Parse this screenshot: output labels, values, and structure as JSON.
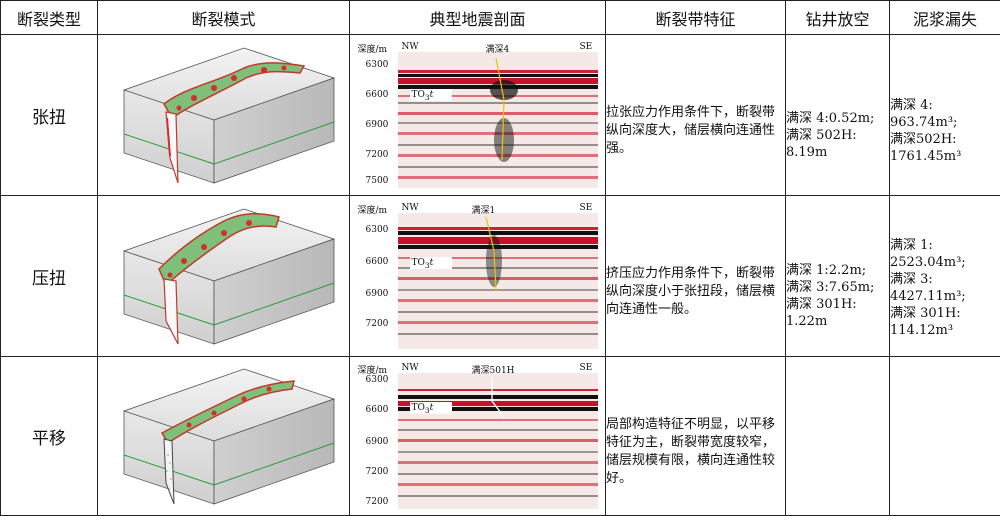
{
  "headers": [
    "断裂类型",
    "断裂模式",
    "典型地震剖面",
    "断裂带特征",
    "钻井放空",
    "泥浆漏失"
  ],
  "rows": [
    {
      "type": "张扭",
      "seismic": {
        "depth_label": "深度/m",
        "left_dir": "NW",
        "right_dir": "SE",
        "well": "满深4",
        "horizon": "TO",
        "horizon_sub": "3",
        "horizon_suffix": "t",
        "depths": [
          "6300",
          "6600",
          "6900",
          "7200",
          "7500"
        ]
      },
      "feature": "拉张应力作用条件下，断裂带纵向深度大，储层横向连通性强。",
      "wells": [
        "满深 4:0.52m;",
        "满深 502H:",
        "8.19m"
      ],
      "loss": [
        "满深 4:",
        "963.74m³;",
        "满深502H:",
        "1761.45m³"
      ]
    },
    {
      "type": "压扭",
      "seismic": {
        "depth_label": "深度/m",
        "left_dir": "NW",
        "right_dir": "SE",
        "well": "满深1",
        "horizon": "TO",
        "horizon_sub": "3",
        "horizon_suffix": "t",
        "depths": [
          "6300",
          "6600",
          "6900",
          "7200"
        ]
      },
      "feature": "挤压应力作用条件下，断裂带纵向深度小于张扭段，储层横向连通性一般。",
      "wells": [
        "满深 1:2.2m;",
        "满深 3:7.65m;",
        "满深 301H:",
        "1.22m"
      ],
      "loss": [
        "满深 1:",
        "2523.04m³;",
        "满深 3:",
        "4427.11m³;",
        "满深 301H:",
        "114.12m³"
      ]
    },
    {
      "type": "平移",
      "seismic": {
        "depth_label": "深度/m",
        "left_dir": "NW",
        "right_dir": "SE",
        "well": "满深501H",
        "horizon": "TO",
        "horizon_sub": "3",
        "horizon_suffix": "t",
        "depths": [
          "6300",
          "6600",
          "6900",
          "7200",
          "7200"
        ]
      },
      "feature": "局部构造特征不明显，以平移特征为主，断裂带宽度较窄，储层规模有限，横向连通性较好。",
      "wells": [],
      "loss": []
    }
  ]
}
